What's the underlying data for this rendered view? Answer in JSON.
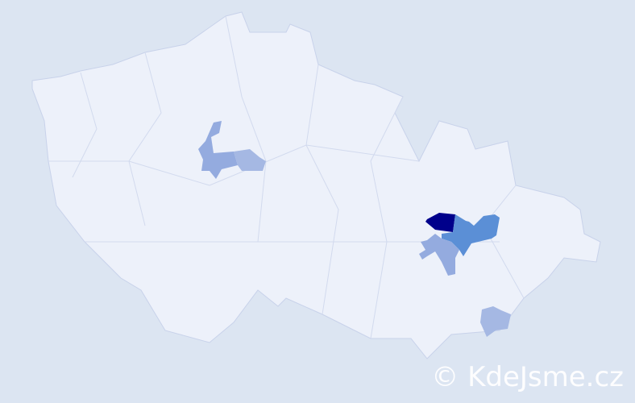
{
  "map": {
    "colors": {
      "background": "#dce5f2",
      "land": "#edf1fa",
      "border": "#c8d2ea",
      "level_1": "#a5b8e3",
      "level_2": "#94abdf",
      "level_3": "#5b8fd6",
      "level_4": "#00008b"
    },
    "highlighted_regions": [
      {
        "name": "region-central-bohemia-west",
        "level": "level_2"
      },
      {
        "name": "region-central-bohemia-east",
        "level": "level_1"
      },
      {
        "name": "region-blansko",
        "level": "level_4"
      },
      {
        "name": "region-prostejov-olomouc",
        "level": "level_3"
      },
      {
        "name": "region-brno",
        "level": "level_2"
      },
      {
        "name": "region-zlin-south",
        "level": "level_1"
      }
    ]
  },
  "watermark": "© KdeJsme.cz"
}
